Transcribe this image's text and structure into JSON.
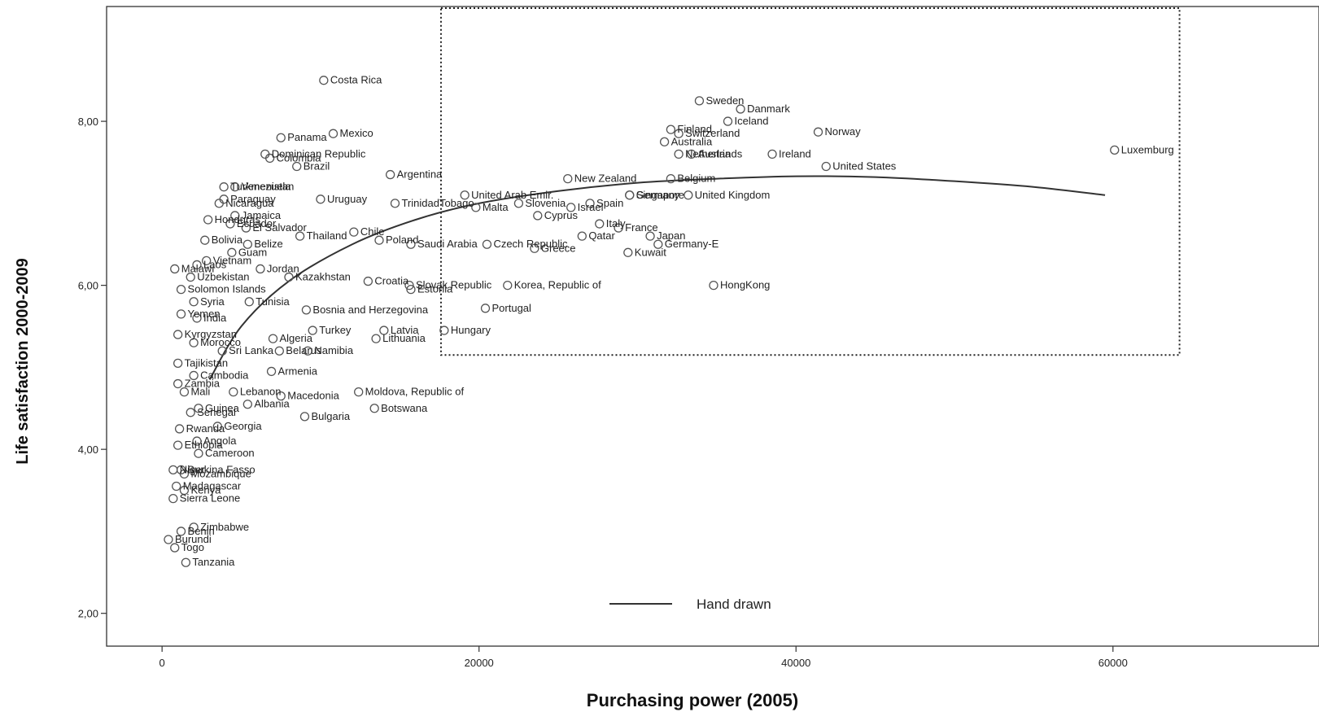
{
  "chart_data": {
    "type": "scatter",
    "title": "",
    "xlabel": "Purchasing power (2005)",
    "ylabel": "Life satisfaction 2000-2009",
    "xlim": [
      -3500,
      73000
    ],
    "ylim": [
      1.6,
      9.4
    ],
    "x_ticks": [
      0,
      20000,
      40000,
      60000
    ],
    "x_tick_labels": [
      "0",
      "20000",
      "40000",
      "60000"
    ],
    "y_ticks": [
      2,
      4,
      6,
      8
    ],
    "y_tick_labels": [
      "2,00",
      "4,00",
      "6,00",
      "8,00"
    ],
    "grid": false,
    "legend": {
      "position": "bottom-center",
      "entries": [
        {
          "label": "Hand drawn",
          "style": "line"
        }
      ]
    },
    "highlight_box": {
      "x": [
        17600,
        64200
      ],
      "y": [
        5.15,
        9.38
      ],
      "style": "dotted"
    },
    "curve": {
      "name": "Hand drawn",
      "x": [
        3000,
        5000,
        8000,
        12000,
        16000,
        20000,
        25000,
        30000,
        35000,
        40000,
        45000,
        50000,
        55000,
        59500
      ],
      "y": [
        4.85,
        5.5,
        6.05,
        6.5,
        6.8,
        7.0,
        7.15,
        7.25,
        7.3,
        7.33,
        7.32,
        7.27,
        7.2,
        7.1
      ]
    },
    "points": [
      {
        "label": "Costa Rica",
        "x": 10200,
        "y": 8.5
      },
      {
        "label": "Panama",
        "x": 7500,
        "y": 7.8
      },
      {
        "label": "Mexico",
        "x": 10800,
        "y": 7.85
      },
      {
        "label": "Colombia",
        "x": 6800,
        "y": 7.55
      },
      {
        "label": "Dominican Republic",
        "x": 6500,
        "y": 7.6
      },
      {
        "label": "Brazil",
        "x": 8500,
        "y": 7.45
      },
      {
        "label": "Argentina",
        "x": 14400,
        "y": 7.35
      },
      {
        "label": "Turkmenistan",
        "x": 3900,
        "y": 7.2
      },
      {
        "label": "Venezuela",
        "x": 4600,
        "y": 7.2
      },
      {
        "label": "TrinidadTobago",
        "x": 14700,
        "y": 7.0
      },
      {
        "label": "Nicaragua",
        "x": 3600,
        "y": 7.0
      },
      {
        "label": "Paraguay",
        "x": 3900,
        "y": 7.05
      },
      {
        "label": "Uruguay",
        "x": 10000,
        "y": 7.05
      },
      {
        "label": "Honduras",
        "x": 2900,
        "y": 6.8
      },
      {
        "label": "Jamaica",
        "x": 4600,
        "y": 6.85
      },
      {
        "label": "El Salvador",
        "x": 5300,
        "y": 6.7
      },
      {
        "label": "Chile",
        "x": 12100,
        "y": 6.65
      },
      {
        "label": "Bolivia",
        "x": 2700,
        "y": 6.55
      },
      {
        "label": "Ecuador",
        "x": 4300,
        "y": 6.75
      },
      {
        "label": "Belize",
        "x": 5400,
        "y": 6.5
      },
      {
        "label": "Poland",
        "x": 13700,
        "y": 6.55
      },
      {
        "label": "Thailand",
        "x": 8700,
        "y": 6.6
      },
      {
        "label": "Malawi",
        "x": 800,
        "y": 6.2
      },
      {
        "label": "Laos",
        "x": 2200,
        "y": 6.25
      },
      {
        "label": "Vietnam",
        "x": 2800,
        "y": 6.3
      },
      {
        "label": "Guam",
        "x": 4400,
        "y": 6.4
      },
      {
        "label": "Uzbekistan",
        "x": 1800,
        "y": 6.1
      },
      {
        "label": "Jordan",
        "x": 6200,
        "y": 6.2
      },
      {
        "label": "Kazakhstan",
        "x": 8000,
        "y": 6.1
      },
      {
        "label": "Croatia",
        "x": 13000,
        "y": 6.05
      },
      {
        "label": "Solomon Islands",
        "x": 1200,
        "y": 5.95
      },
      {
        "label": "Estonia",
        "x": 15700,
        "y": 5.95
      },
      {
        "label": "Syria",
        "x": 2000,
        "y": 5.8
      },
      {
        "label": "Tunisia",
        "x": 5500,
        "y": 5.8
      },
      {
        "label": "Bosnia and Herzegovina",
        "x": 9100,
        "y": 5.7
      },
      {
        "label": "Yemen",
        "x": 1200,
        "y": 5.65
      },
      {
        "label": "India",
        "x": 2200,
        "y": 5.6
      },
      {
        "label": "Kyrgyzstan",
        "x": 1000,
        "y": 5.4
      },
      {
        "label": "Morocco",
        "x": 2000,
        "y": 5.3
      },
      {
        "label": "Algeria",
        "x": 7000,
        "y": 5.35
      },
      {
        "label": "Turkey",
        "x": 9500,
        "y": 5.45
      },
      {
        "label": "Lithuania",
        "x": 13500,
        "y": 5.35
      },
      {
        "label": "Sri Lanka",
        "x": 3800,
        "y": 5.2
      },
      {
        "label": "Belarus",
        "x": 7400,
        "y": 5.2
      },
      {
        "label": "Namibia",
        "x": 9200,
        "y": 5.2
      },
      {
        "label": "Latvia",
        "x": 14000,
        "y": 5.45
      },
      {
        "label": "Tajikistan",
        "x": 1000,
        "y": 5.05
      },
      {
        "label": "Armenia",
        "x": 6900,
        "y": 4.95
      },
      {
        "label": "Cambodia",
        "x": 2000,
        "y": 4.9
      },
      {
        "label": "Zambia",
        "x": 1000,
        "y": 4.8
      },
      {
        "label": "Lebanon",
        "x": 4500,
        "y": 4.7
      },
      {
        "label": "Mali",
        "x": 1400,
        "y": 4.7
      },
      {
        "label": "Macedonia",
        "x": 7500,
        "y": 4.65
      },
      {
        "label": "Moldova, Republic of",
        "x": 12400,
        "y": 4.7
      },
      {
        "label": "Senegal",
        "x": 1800,
        "y": 4.45
      },
      {
        "label": "Guinea",
        "x": 2300,
        "y": 4.5
      },
      {
        "label": "Albania",
        "x": 5400,
        "y": 4.55
      },
      {
        "label": "Botswana",
        "x": 13400,
        "y": 4.5
      },
      {
        "label": "Rwanda",
        "x": 1100,
        "y": 4.25
      },
      {
        "label": "Georgia",
        "x": 3500,
        "y": 4.28
      },
      {
        "label": "Bulgaria",
        "x": 9000,
        "y": 4.4
      },
      {
        "label": "Ethiopia",
        "x": 1000,
        "y": 4.05
      },
      {
        "label": "Angola",
        "x": 2200,
        "y": 4.1
      },
      {
        "label": "Cameroon",
        "x": 2300,
        "y": 3.95
      },
      {
        "label": "Niger",
        "x": 700,
        "y": 3.75
      },
      {
        "label": "Burkina Fasso",
        "x": 1200,
        "y": 3.75
      },
      {
        "label": "Mozambique",
        "x": 1400,
        "y": 3.7
      },
      {
        "label": "Madagascar",
        "x": 900,
        "y": 3.55
      },
      {
        "label": "Kenya",
        "x": 1400,
        "y": 3.5
      },
      {
        "label": "Sierra Leone",
        "x": 700,
        "y": 3.4
      },
      {
        "label": "Zimbabwe",
        "x": 2000,
        "y": 3.05
      },
      {
        "label": "Benin",
        "x": 1200,
        "y": 3.0
      },
      {
        "label": "Burundi",
        "x": 400,
        "y": 2.9
      },
      {
        "label": "Togo",
        "x": 800,
        "y": 2.8
      },
      {
        "label": "Tanzania",
        "x": 1500,
        "y": 2.62
      },
      {
        "label": "United Arab Emir.",
        "x": 19100,
        "y": 7.1
      },
      {
        "label": "Malta",
        "x": 19800,
        "y": 6.95
      },
      {
        "label": "Slovenia",
        "x": 22500,
        "y": 7.0
      },
      {
        "label": "Cyprus",
        "x": 23700,
        "y": 6.85
      },
      {
        "label": "Israel",
        "x": 25800,
        "y": 6.95
      },
      {
        "label": "Spain",
        "x": 27000,
        "y": 7.0
      },
      {
        "label": "Czech Republic",
        "x": 20500,
        "y": 6.5
      },
      {
        "label": "Saudi Arabia",
        "x": 15700,
        "y": 6.5
      },
      {
        "label": "Slovak Republic",
        "x": 15600,
        "y": 6.0
      },
      {
        "label": "Greece",
        "x": 23500,
        "y": 6.45
      },
      {
        "label": "Qatar",
        "x": 26500,
        "y": 6.6
      },
      {
        "label": "Italy",
        "x": 27600,
        "y": 6.75
      },
      {
        "label": "Kuwait",
        "x": 29400,
        "y": 6.4
      },
      {
        "label": "Korea, Republic of",
        "x": 21800,
        "y": 6.0
      },
      {
        "label": "Portugal",
        "x": 20400,
        "y": 5.72
      },
      {
        "label": "Hungary",
        "x": 17800,
        "y": 5.45
      },
      {
        "label": "Germany-E",
        "x": 31300,
        "y": 6.5
      },
      {
        "label": "Japan",
        "x": 30800,
        "y": 6.6
      },
      {
        "label": "France",
        "x": 28800,
        "y": 6.7
      },
      {
        "label": "HongKong",
        "x": 34800,
        "y": 6.0
      },
      {
        "label": "Singapore",
        "x": 29500,
        "y": 7.1
      },
      {
        "label": "Germany",
        "x": 29500,
        "y": 7.1
      },
      {
        "label": "United Kingdom",
        "x": 33200,
        "y": 7.1
      },
      {
        "label": "Belgium",
        "x": 32100,
        "y": 7.3
      },
      {
        "label": "New Zealand",
        "x": 25600,
        "y": 7.3
      },
      {
        "label": "Netherlands",
        "x": 32600,
        "y": 7.6
      },
      {
        "label": "Austria",
        "x": 33400,
        "y": 7.6
      },
      {
        "label": "Australia",
        "x": 31700,
        "y": 7.75
      },
      {
        "label": "Finland",
        "x": 32100,
        "y": 7.9
      },
      {
        "label": "Switzerland",
        "x": 32600,
        "y": 7.85
      },
      {
        "label": "Sweden",
        "x": 33900,
        "y": 8.25
      },
      {
        "label": "Danmark",
        "x": 36500,
        "y": 8.15
      },
      {
        "label": "Iceland",
        "x": 35700,
        "y": 8.0
      },
      {
        "label": "Norway",
        "x": 41400,
        "y": 7.87
      },
      {
        "label": "Ireland",
        "x": 38500,
        "y": 7.6
      },
      {
        "label": "United States",
        "x": 41900,
        "y": 7.45
      },
      {
        "label": "Luxemburg",
        "x": 60100,
        "y": 7.65
      }
    ]
  }
}
